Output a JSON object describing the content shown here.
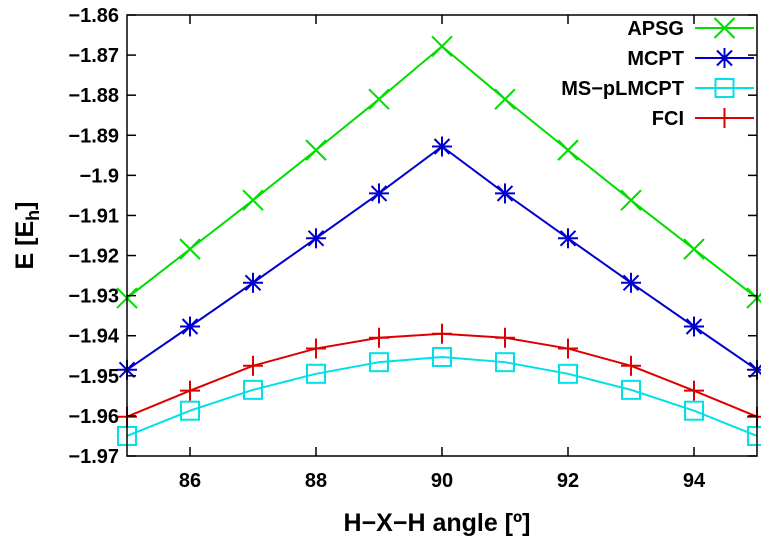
{
  "chart_data": {
    "type": "line",
    "xlabel": "H−X−H angle [º]",
    "ylabel": "E [E",
    "ylabel_sub": "h",
    "ylabel_end": "]",
    "xlim": [
      85,
      95
    ],
    "ylim": [
      -1.97,
      -1.86
    ],
    "xticks": [
      {
        "value": 86,
        "label": "86"
      },
      {
        "value": 88,
        "label": "88"
      },
      {
        "value": 90,
        "label": "90"
      },
      {
        "value": 92,
        "label": "92"
      },
      {
        "value": 94,
        "label": "94"
      }
    ],
    "yticks": [
      {
        "value": -1.86,
        "label": "−1.86"
      },
      {
        "value": -1.87,
        "label": "−1.87"
      },
      {
        "value": -1.88,
        "label": "−1.88"
      },
      {
        "value": -1.89,
        "label": "−1.89"
      },
      {
        "value": -1.9,
        "label": "−1.9"
      },
      {
        "value": -1.91,
        "label": "−1.91"
      },
      {
        "value": -1.92,
        "label": "−1.92"
      },
      {
        "value": -1.93,
        "label": "−1.93"
      },
      {
        "value": -1.94,
        "label": "−1.94"
      },
      {
        "value": -1.95,
        "label": "−1.95"
      },
      {
        "value": -1.96,
        "label": "−1.96"
      },
      {
        "value": -1.97,
        "label": "−1.97"
      }
    ],
    "grid": false,
    "legend_position": "top-right",
    "x": [
      85,
      86,
      87,
      88,
      89,
      90,
      91,
      92,
      93,
      94,
      95
    ],
    "series": [
      {
        "name": "APSG",
        "color": "#00dd00",
        "marker": "x",
        "values": [
          -1.9306,
          -1.9184,
          -1.9062,
          -1.8937,
          -1.881,
          -1.8678,
          -1.881,
          -1.8937,
          -1.9062,
          -1.9184,
          -1.9306
        ]
      },
      {
        "name": "MCPT",
        "color": "#0000cc",
        "marker": "asterisk",
        "values": [
          -1.9485,
          -1.9377,
          -1.9268,
          -1.9157,
          -1.9045,
          -1.8928,
          -1.9045,
          -1.9157,
          -1.9268,
          -1.9377,
          -1.9485
        ]
      },
      {
        "name": "MS−pLMCPT",
        "color": "#00e0e8",
        "marker": "square",
        "values": [
          -1.965,
          -1.9587,
          -1.9535,
          -1.9495,
          -1.9466,
          -1.9453,
          -1.9466,
          -1.9495,
          -1.9535,
          -1.9587,
          -1.965
        ]
      },
      {
        "name": "FCI",
        "color": "#dd0000",
        "marker": "plus",
        "values": [
          -1.9602,
          -1.9537,
          -1.9475,
          -1.9432,
          -1.9405,
          -1.9395,
          -1.9405,
          -1.9432,
          -1.9475,
          -1.9537,
          -1.9602
        ]
      }
    ]
  }
}
